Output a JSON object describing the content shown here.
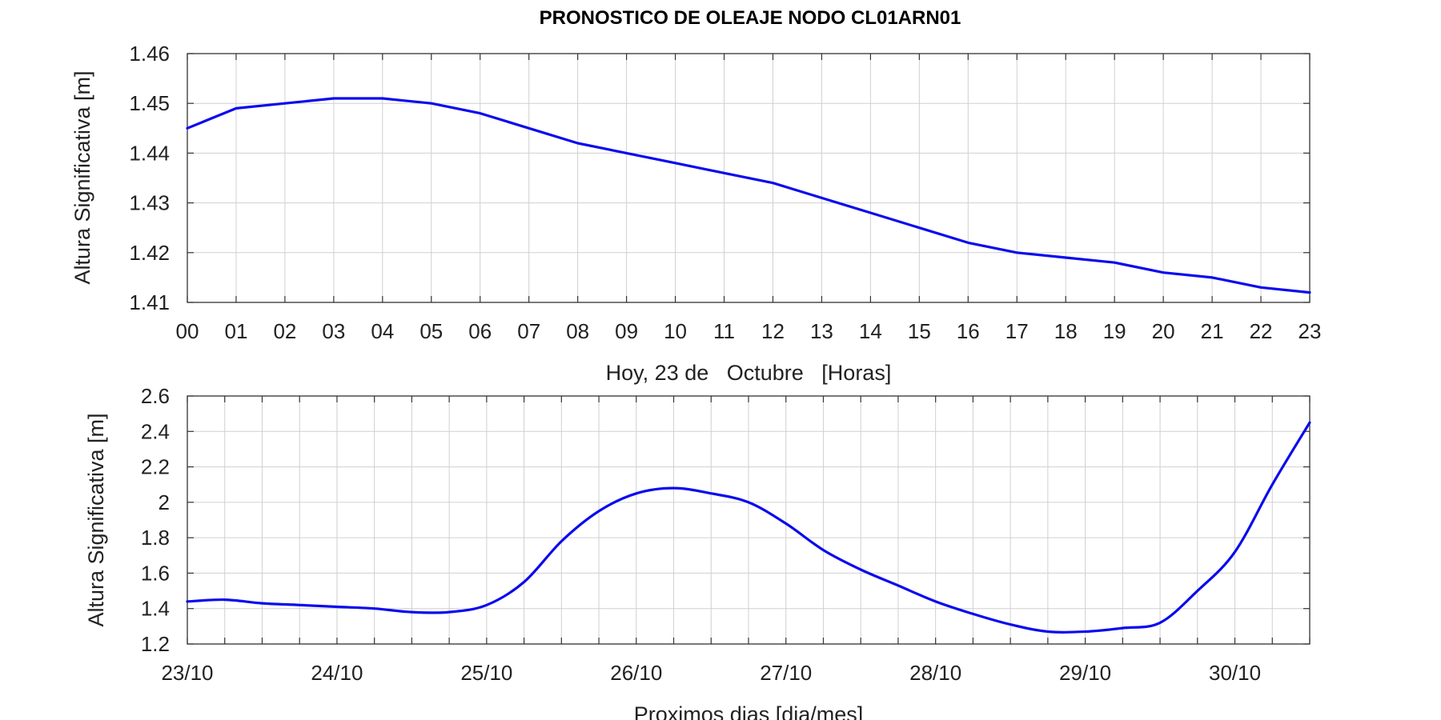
{
  "title": "PRONOSTICO DE OLEAJE NODO CL01ARN01",
  "colors": {
    "line": "#0a0aee",
    "grid": "#d0d0d0",
    "frame": "#333333"
  },
  "chart_data": [
    {
      "type": "line",
      "xlabel": "Hoy, 23 de   Octubre   [Horas]",
      "ylabel": "Altura Significativa [m]",
      "xlim": [
        0,
        23
      ],
      "ylim": [
        1.41,
        1.46
      ],
      "grid": true,
      "x_tick_labels": [
        "00",
        "01",
        "02",
        "03",
        "04",
        "05",
        "06",
        "07",
        "08",
        "09",
        "10",
        "11",
        "12",
        "13",
        "14",
        "15",
        "16",
        "17",
        "18",
        "19",
        "20",
        "21",
        "22",
        "23"
      ],
      "y_ticks": [
        1.41,
        1.42,
        1.43,
        1.44,
        1.45,
        1.46
      ],
      "y_tick_labels": [
        "1.41",
        "1.42",
        "1.43",
        "1.44",
        "1.45",
        "1.46"
      ],
      "series": [
        {
          "x": [
            0,
            1,
            2,
            3,
            4,
            5,
            6,
            7,
            8,
            9,
            10,
            11,
            12,
            13,
            14,
            15,
            16,
            17,
            18,
            19,
            20,
            21,
            22,
            23
          ],
          "values": [
            1.445,
            1.449,
            1.45,
            1.451,
            1.451,
            1.45,
            1.448,
            1.445,
            1.442,
            1.44,
            1.438,
            1.436,
            1.434,
            1.431,
            1.428,
            1.425,
            1.422,
            1.42,
            1.419,
            1.418,
            1.416,
            1.415,
            1.413,
            1.412
          ]
        }
      ]
    },
    {
      "type": "line",
      "xlabel": "Proximos dias [dia/mes]",
      "ylabel": "Altura Significativa [m]",
      "xlim": [
        "23/10 00:00",
        "30/10 12:00"
      ],
      "ylim": [
        1.2,
        2.6
      ],
      "grid": true,
      "x_ticks": [
        "23/10",
        "24/10",
        "25/10",
        "26/10",
        "27/10",
        "28/10",
        "29/10",
        "30/10"
      ],
      "x_tick_labels": [
        "23/10",
        "24/10",
        "25/10",
        "26/10",
        "27/10",
        "28/10",
        "29/10",
        "30/10"
      ],
      "y_ticks": [
        1.2,
        1.4,
        1.6,
        1.8,
        2.0,
        2.2,
        2.4,
        2.6
      ],
      "y_tick_labels": [
        "1.2",
        "1.4",
        "1.6",
        "1.8",
        "2",
        "2.2",
        "2.4",
        "2.6"
      ],
      "series": [
        {
          "x": [
            "23/10 00:00",
            "23/10 06:00",
            "23/10 12:00",
            "23/10 18:00",
            "24/10 00:00",
            "24/10 06:00",
            "24/10 12:00",
            "24/10 18:00",
            "25/10 00:00",
            "25/10 06:00",
            "25/10 12:00",
            "25/10 18:00",
            "26/10 00:00",
            "26/10 06:00",
            "26/10 12:00",
            "26/10 18:00",
            "27/10 00:00",
            "27/10 06:00",
            "27/10 12:00",
            "27/10 18:00",
            "28/10 00:00",
            "28/10 06:00",
            "28/10 12:00",
            "28/10 18:00",
            "29/10 00:00",
            "29/10 06:00",
            "29/10 12:00",
            "29/10 18:00",
            "30/10 00:00",
            "30/10 06:00",
            "30/10 12:00"
          ],
          "values": [
            1.44,
            1.45,
            1.43,
            1.42,
            1.41,
            1.4,
            1.38,
            1.38,
            1.42,
            1.55,
            1.78,
            1.95,
            2.05,
            2.08,
            2.05,
            2.0,
            1.88,
            1.73,
            1.62,
            1.53,
            1.44,
            1.37,
            1.31,
            1.27,
            1.27,
            1.29,
            1.32,
            1.5,
            1.72,
            2.1,
            2.45
          ]
        }
      ]
    }
  ]
}
